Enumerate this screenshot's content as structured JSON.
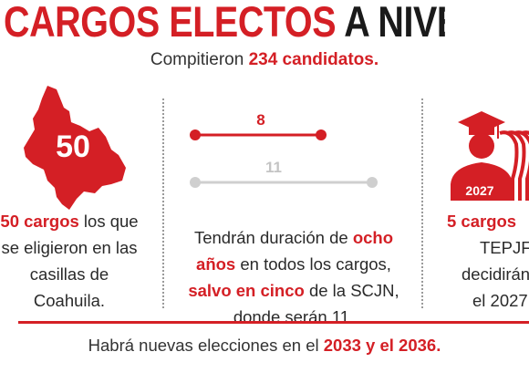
{
  "title": {
    "part1": "CARGOS ELECTOS",
    "part2": "A NIVEL FEDERA"
  },
  "subtitle": {
    "before": "Compitieron ",
    "highlight": "234 candidatos."
  },
  "col1": {
    "map_number": "50",
    "highlight": "50 cargos",
    "text_rest": " los que se eligieron en las casillas de Coahuila."
  },
  "col2": {
    "timeline_top_label": "8",
    "timeline_bottom_label": "11",
    "text_a": "Tendrán duración de ",
    "highlight_a": "ocho años",
    "text_b": " en todos los cargos, ",
    "highlight_b": "salvo en cinco",
    "text_c": " de la SCJN, donde serán 11."
  },
  "col3": {
    "year_label": "2027",
    "highlight": "5 cargos",
    "line2": "TEPJF s",
    "line3": "decidirán",
    "line4": "el 2027"
  },
  "footer": {
    "before": "Habrá nuevas elecciones en el ",
    "highlight": "2033 y el 2036."
  },
  "colors": {
    "accent": "#d41f25",
    "grey": "#cfcfcf"
  },
  "icons": {
    "map": "coahuila-map-icon",
    "graduates": "graduates-icon"
  }
}
